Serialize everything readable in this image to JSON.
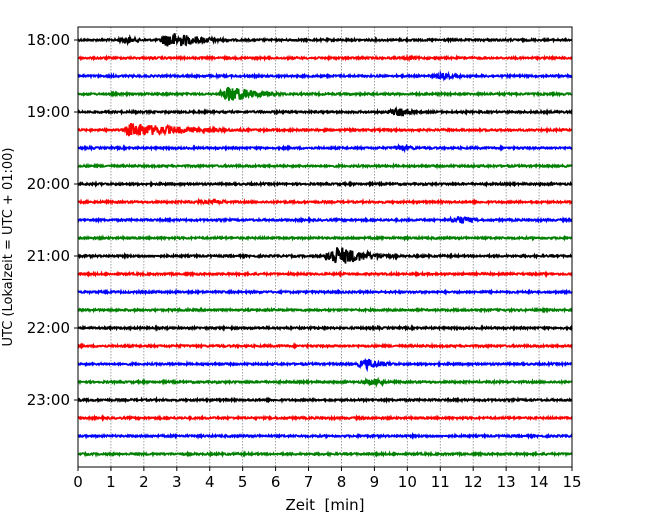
{
  "chart_data": {
    "type": "line",
    "subtype": "helicorder",
    "title": "",
    "xlabel": "Zeit  [min]",
    "ylabel": "UTC (Lokalzeit = UTC + 01:00)",
    "xlim": [
      0,
      15
    ],
    "x_ticks": [
      "0",
      "1",
      "2",
      "3",
      "4",
      "5",
      "6",
      "7",
      "8",
      "9",
      "10",
      "11",
      "12",
      "13",
      "14",
      "15"
    ],
    "y_tick_labels": [
      "18:00",
      "19:00",
      "20:00",
      "21:00",
      "22:00",
      "23:00"
    ],
    "trace_interval_min": 15,
    "trace_count": 24,
    "trace_colors": [
      "#000000",
      "#ff0000",
      "#0000ff",
      "#008000"
    ],
    "grid": "vertical dotted",
    "events": [
      {
        "trace": 0,
        "start": 1.2,
        "end": 2.1,
        "peak": 1.5,
        "amp": 0.22
      },
      {
        "trace": 0,
        "start": 2.5,
        "end": 4.7,
        "peak": 2.8,
        "amp": 0.45
      },
      {
        "trace": 1,
        "start": 9.9,
        "end": 10.6,
        "peak": 10.1,
        "amp": 0.12
      },
      {
        "trace": 2,
        "start": 10.8,
        "end": 12.0,
        "peak": 11.1,
        "amp": 0.18
      },
      {
        "trace": 3,
        "start": 4.3,
        "end": 6.3,
        "peak": 4.6,
        "amp": 0.45
      },
      {
        "trace": 4,
        "start": 9.4,
        "end": 10.3,
        "peak": 9.9,
        "amp": 0.3
      },
      {
        "trace": 5,
        "start": 1.45,
        "end": 5.1,
        "peak": 1.55,
        "amp": 0.4
      },
      {
        "trace": 6,
        "start": 9.6,
        "end": 10.6,
        "peak": 9.8,
        "amp": 0.2
      },
      {
        "trace": 9,
        "start": 3.0,
        "end": 4.8,
        "peak": 4.4,
        "amp": 0.12
      },
      {
        "trace": 10,
        "start": 11.3,
        "end": 12.4,
        "peak": 11.6,
        "amp": 0.25
      },
      {
        "trace": 12,
        "start": 7.5,
        "end": 9.7,
        "peak": 7.85,
        "amp": 0.55
      },
      {
        "trace": 17,
        "start": 3.05,
        "end": 3.2,
        "peak": 3.1,
        "amp": 0.1
      },
      {
        "trace": 18,
        "start": 8.5,
        "end": 9.8,
        "peak": 8.8,
        "amp": 0.3
      },
      {
        "trace": 19,
        "start": 8.6,
        "end": 9.5,
        "peak": 9.1,
        "amp": 0.2
      }
    ]
  }
}
